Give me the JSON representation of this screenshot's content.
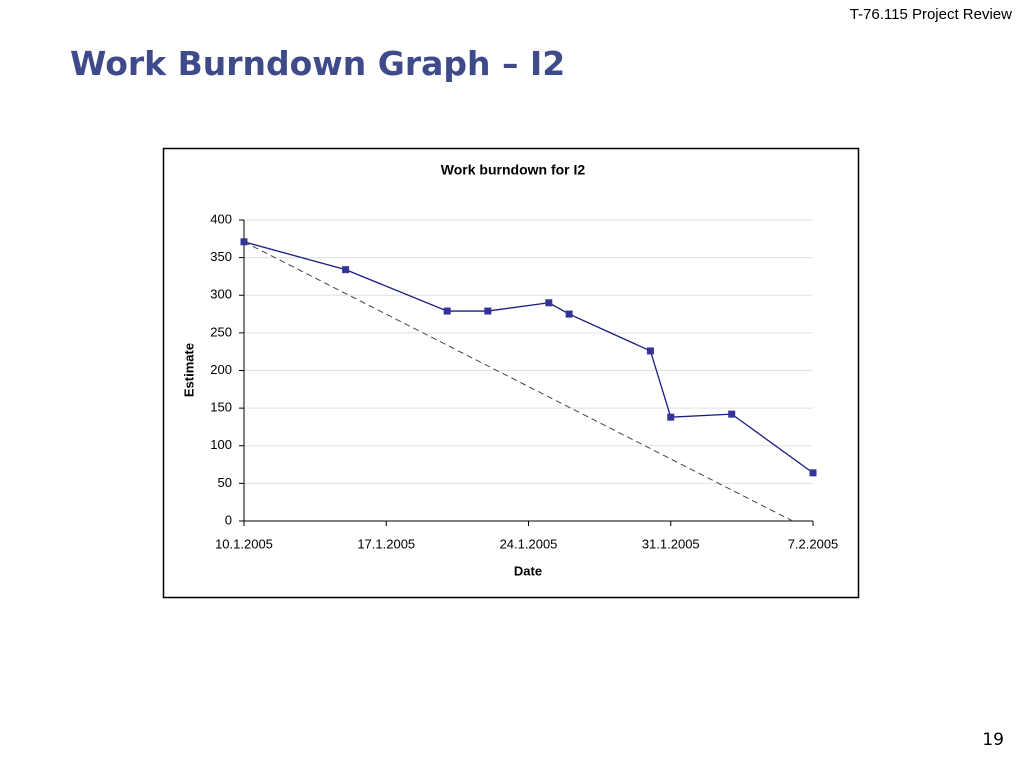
{
  "header": "T-76.115 Project Review",
  "title": "Work Burndown Graph – I2",
  "page_number": "19",
  "chart_data": {
    "type": "line",
    "title": "Work burndown for I2",
    "xlabel": "Date",
    "ylabel": "Estimate",
    "xlim": [
      "2005-01-10",
      "2005-02-07"
    ],
    "xticks": [
      {
        "value": "2005-01-10",
        "label": "10.1.2005"
      },
      {
        "value": "2005-01-17",
        "label": "17.1.2005"
      },
      {
        "value": "2005-01-24",
        "label": "24.1.2005"
      },
      {
        "value": "2005-01-31",
        "label": "31.1.2005"
      },
      {
        "value": "2005-02-07",
        "label": "7.2.2005"
      }
    ],
    "ylim": [
      0,
      400
    ],
    "yticks": [
      0,
      50,
      100,
      150,
      200,
      250,
      300,
      350,
      400
    ],
    "grid": true,
    "series": [
      {
        "color": "#1a1a80",
        "marker": "square",
        "dash": "solid",
        "x": [
          "2005-01-10",
          "2005-01-15",
          "2005-01-20",
          "2005-01-22",
          "2005-01-25",
          "2005-01-26",
          "2005-01-30",
          "2005-01-31",
          "2005-02-03",
          "2005-02-07"
        ],
        "values": [
          371,
          334,
          279,
          279,
          290,
          275,
          226,
          138,
          142,
          64
        ]
      },
      {
        "color": "#444444",
        "marker": "none",
        "dash": "dashed",
        "x": [
          "2005-01-10",
          "2005-02-06"
        ],
        "values": [
          371,
          0
        ]
      }
    ]
  }
}
